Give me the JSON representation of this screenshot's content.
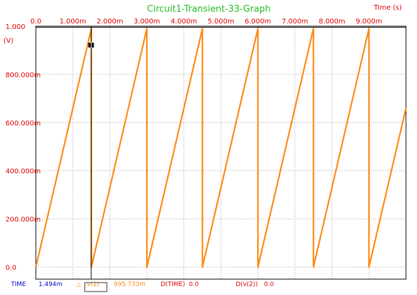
{
  "graph": {
    "title": "Circuit1-Transient-33-Graph",
    "x_unit_label": "Time (s)",
    "y_unit_label": "(V)"
  },
  "colors": {
    "title": "#22bb22",
    "ticks": "#dd0000",
    "trace": "#ff8811",
    "cursor": "#000000",
    "grid": "#888888",
    "time_label": "#0000cc"
  },
  "readout": {
    "time_label": "TIME",
    "time_value": "1.494m",
    "marker_icon": "triangle-marker-icon",
    "trace_label": "v(2)",
    "trace_value": "995.733m",
    "dtime_label": "D(TIME)",
    "dtime_value": "0.0",
    "dv_label": "D(v(2))",
    "dv_value": "0.0"
  },
  "chart_data": {
    "type": "line",
    "title": "Circuit1-Transient-33-Graph",
    "xlabel": "Time (s)",
    "ylabel": "(V)",
    "xlim": [
      0,
      0.01
    ],
    "ylim": [
      -0.05,
      1.0
    ],
    "grid": true,
    "x_ticks": [
      {
        "value": 0,
        "label": "0.0"
      },
      {
        "value": 0.001,
        "label": "1.000m"
      },
      {
        "value": 0.002,
        "label": "2.000m"
      },
      {
        "value": 0.003,
        "label": "3.000m"
      },
      {
        "value": 0.004,
        "label": "4.000m"
      },
      {
        "value": 0.005,
        "label": "5.000m"
      },
      {
        "value": 0.006,
        "label": "6.000m"
      },
      {
        "value": 0.007,
        "label": "7.000m"
      },
      {
        "value": 0.008,
        "label": "8.000m"
      },
      {
        "value": 0.009,
        "label": "9.000m"
      }
    ],
    "y_ticks": [
      {
        "value": 0.0,
        "label": "0.0"
      },
      {
        "value": 0.2,
        "label": "200.000m"
      },
      {
        "value": 0.4,
        "label": "400.000m"
      },
      {
        "value": 0.6,
        "label": "600.000m"
      },
      {
        "value": 0.8,
        "label": "800.000m"
      },
      {
        "value": 1.0,
        "label": "1.000"
      }
    ],
    "series": [
      {
        "name": "v(2)",
        "x": [
          0,
          0.0015,
          0.0015,
          0.003,
          0.003,
          0.0045,
          0.0045,
          0.006,
          0.006,
          0.0075,
          0.0075,
          0.009,
          0.009,
          0.01
        ],
        "y": [
          0,
          0.99,
          0,
          0.99,
          0,
          0.99,
          0,
          0.99,
          0,
          0.99,
          0,
          0.99,
          0,
          0.66
        ]
      }
    ],
    "cursor": {
      "x": 0.001494,
      "y": 0.995733
    }
  }
}
